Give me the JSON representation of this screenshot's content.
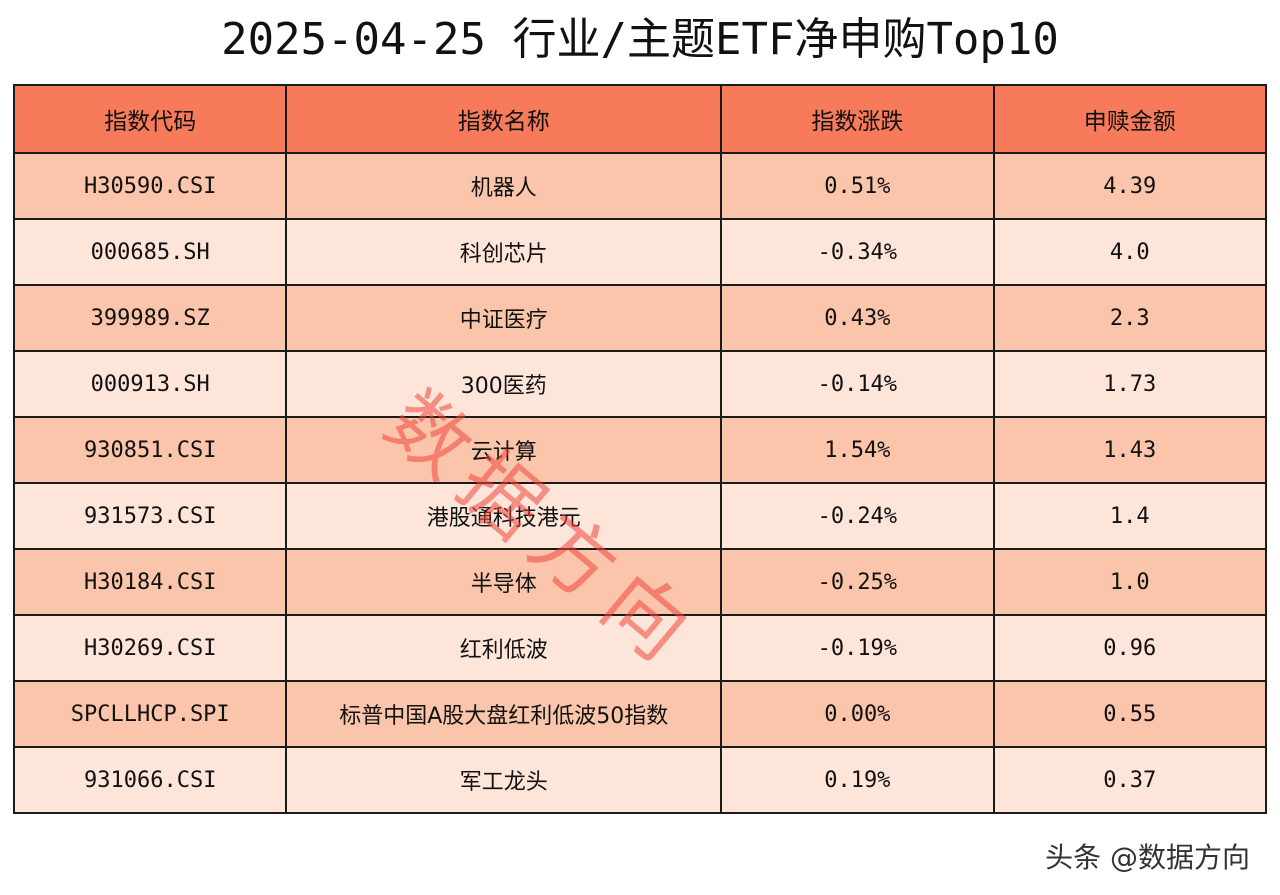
{
  "title": "2025-04-25 行业/主题ETF净申购Top10",
  "table": {
    "headers": [
      "指数代码",
      "指数名称",
      "指数涨跌",
      "申赎金额"
    ],
    "rows": [
      {
        "code": "H30590.CSI",
        "name": "机器人",
        "change": "0.51%",
        "amount": "4.39"
      },
      {
        "code": "000685.SH",
        "name": "科创芯片",
        "change": "-0.34%",
        "amount": "4.0"
      },
      {
        "code": "399989.SZ",
        "name": "中证医疗",
        "change": "0.43%",
        "amount": "2.3"
      },
      {
        "code": "000913.SH",
        "name": "300医药",
        "change": "-0.14%",
        "amount": "1.73"
      },
      {
        "code": "930851.CSI",
        "name": "云计算",
        "change": "1.54%",
        "amount": "1.43"
      },
      {
        "code": "931573.CSI",
        "name": "港股通科技港元",
        "change": "-0.24%",
        "amount": "1.4"
      },
      {
        "code": "H30184.CSI",
        "name": "半导体",
        "change": "-0.25%",
        "amount": "1.0"
      },
      {
        "code": "H30269.CSI",
        "name": "红利低波",
        "change": "-0.19%",
        "amount": "0.96"
      },
      {
        "code": "SPCLLHCP.SPI",
        "name": "标普中国A股大盘红利低波50指数",
        "change": "0.00%",
        "amount": "0.55"
      },
      {
        "code": "931066.CSI",
        "name": "军工龙头",
        "change": "0.19%",
        "amount": "0.37"
      }
    ]
  },
  "watermark": "数据方向",
  "footer": "头条 @数据方向",
  "colors": {
    "header_bg": "#f77b5a",
    "row_odd_bg": "#fbc5ab",
    "row_even_bg": "#fde5da",
    "watermark": "#f0463c"
  }
}
